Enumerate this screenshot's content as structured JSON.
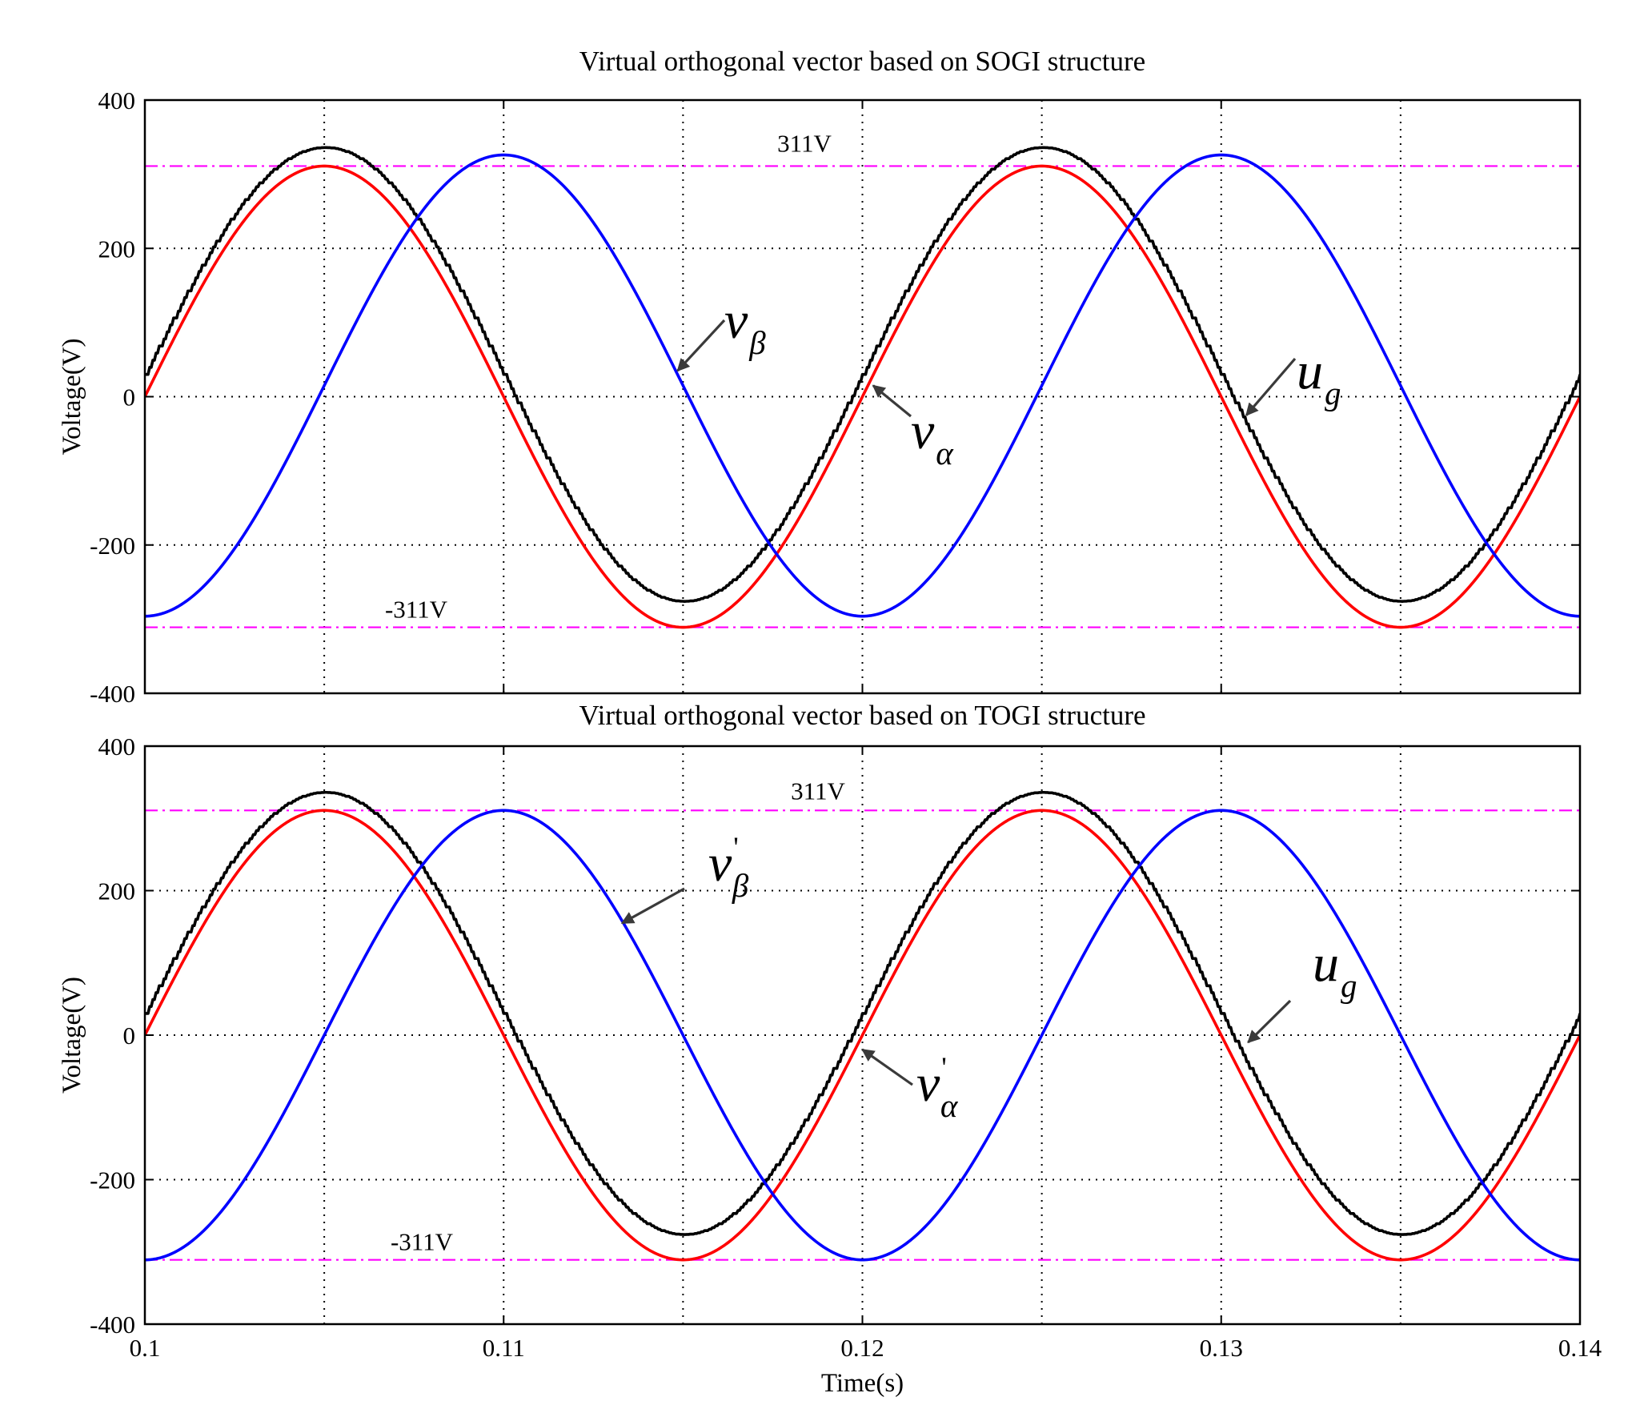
{
  "chart_data": [
    {
      "type": "line",
      "title": "Virtual orthogonal vector based on SOGI structure",
      "xlabel": "",
      "ylabel": "Voltage(V)",
      "xlim": [
        0.1,
        0.14
      ],
      "ylim": [
        -400,
        400
      ],
      "xticks": [
        0.1,
        0.11,
        0.12,
        0.13,
        0.14
      ],
      "xtick_labels": [
        "0.1",
        "0.11",
        "0.12",
        "0.13",
        "0.14"
      ],
      "show_xtick_labels": false,
      "yticks": [
        -400,
        -200,
        0,
        200,
        400
      ],
      "ytick_labels": [
        "-400",
        "-200",
        "0",
        "200",
        "400"
      ],
      "grid": true,
      "reference_lines": [
        {
          "value": 311,
          "label": "311V",
          "color": "#ff00ff"
        },
        {
          "value": -311,
          "label": "-311V",
          "color": "#ff00ff"
        }
      ],
      "series": [
        {
          "name": "u_g",
          "color": "#000000",
          "amplitude": 306,
          "offset": 30,
          "phase_deg": 0,
          "frequency_hz": 50
        },
        {
          "name": "v_alpha",
          "color": "#ff0000",
          "amplitude": 311,
          "offset": 0,
          "phase_deg": 0,
          "frequency_hz": 50
        },
        {
          "name": "v_beta",
          "color": "#0000ff",
          "amplitude": 311,
          "offset": 15,
          "phase_deg": -90,
          "frequency_hz": 50
        }
      ],
      "annotations": [
        {
          "base": "v",
          "sub": "β",
          "prime": "",
          "points_to": {
            "x": 0.11485,
            "y": 35
          }
        },
        {
          "base": "v",
          "sub": "α",
          "prime": "",
          "points_to": {
            "x": 0.1203,
            "y": 15
          }
        },
        {
          "base": "u",
          "sub": "g",
          "prime": "",
          "points_to": {
            "x": 0.1307,
            "y": -25
          }
        }
      ]
    },
    {
      "type": "line",
      "title": "Virtual orthogonal vector based on TOGI structure",
      "xlabel": "Time(s)",
      "ylabel": "Voltage(V)",
      "xlim": [
        0.1,
        0.14
      ],
      "ylim": [
        -400,
        400
      ],
      "xticks": [
        0.1,
        0.11,
        0.12,
        0.13,
        0.14
      ],
      "xtick_labels": [
        "0.1",
        "0.11",
        "0.12",
        "0.13",
        "0.14"
      ],
      "show_xtick_labels": true,
      "yticks": [
        -400,
        -200,
        0,
        200,
        400
      ],
      "ytick_labels": [
        "-400",
        "-200",
        "0",
        "200",
        "400"
      ],
      "grid": true,
      "reference_lines": [
        {
          "value": 311,
          "label": "311V",
          "color": "#ff00ff"
        },
        {
          "value": -311,
          "label": "-311V",
          "color": "#ff00ff"
        }
      ],
      "series": [
        {
          "name": "u_g",
          "color": "#000000",
          "amplitude": 306,
          "offset": 30,
          "phase_deg": 0,
          "frequency_hz": 50
        },
        {
          "name": "v_alpha_prime",
          "color": "#ff0000",
          "amplitude": 311,
          "offset": 0,
          "phase_deg": 0,
          "frequency_hz": 50
        },
        {
          "name": "v_beta_prime",
          "color": "#0000ff",
          "amplitude": 311,
          "offset": 0,
          "phase_deg": -90,
          "frequency_hz": 50
        }
      ],
      "annotations": [
        {
          "base": "v",
          "sub": "β",
          "prime": "'",
          "points_to": {
            "x": 0.1133,
            "y": 155
          }
        },
        {
          "base": "v",
          "sub": "α",
          "prime": "'",
          "points_to": {
            "x": 0.12,
            "y": -20
          }
        },
        {
          "base": "u",
          "sub": "g",
          "prime": "",
          "points_to": {
            "x": 0.13075,
            "y": -10
          }
        }
      ]
    }
  ]
}
